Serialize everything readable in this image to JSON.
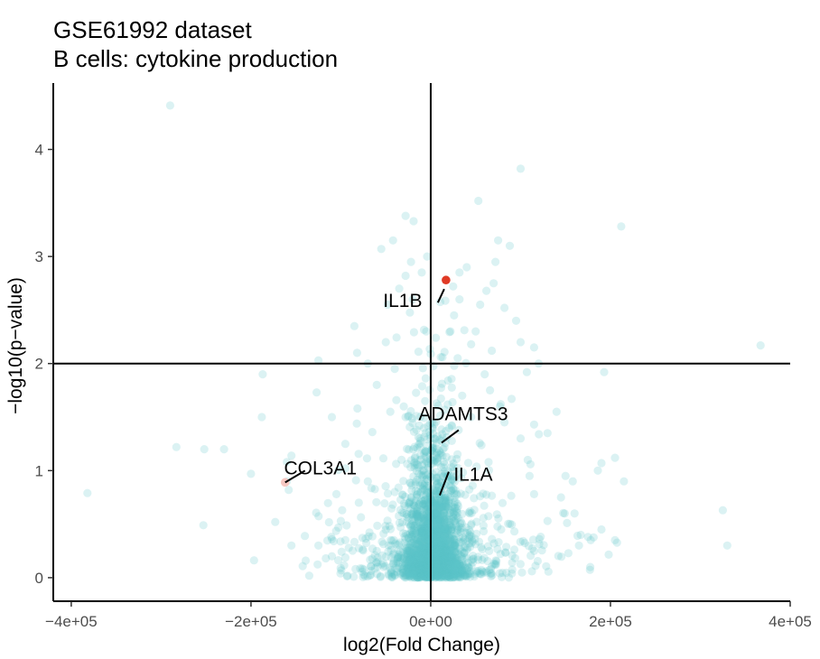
{
  "chart_data": {
    "type": "scatter",
    "title": "GSE61992 dataset",
    "subtitle": "B cells: cytokine production",
    "xlabel": "log2(Fold Change)",
    "ylabel": "−log10(p−value)",
    "xlim": [
      -420000,
      400000
    ],
    "ylim": [
      -0.22,
      4.62
    ],
    "x_ticks": [
      -400000,
      -200000,
      0,
      200000,
      400000
    ],
    "x_tick_labels": [
      "−4e+05",
      "−2e+05",
      "0e+00",
      "2e+05",
      "4e+05"
    ],
    "y_ticks": [
      0,
      1,
      2,
      3,
      4
    ],
    "y_tick_labels": [
      "0",
      "1",
      "2",
      "3",
      "4"
    ],
    "reference_lines": {
      "vertical_x": 0,
      "horizontal_y": 2
    },
    "grid": false,
    "colors": {
      "points": "#5bc2c7",
      "highlight": "#e03a25",
      "faint": "#f7c8c2",
      "line": "#000000"
    },
    "point_alpha": 0.22,
    "highlighted": [
      {
        "gene": "IL1B",
        "x": 17000,
        "y": 2.78,
        "color": "#e03a25"
      },
      {
        "gene": "COL3A1",
        "x": -162000,
        "y": 0.89,
        "color": "#f7c8c2"
      }
    ],
    "labels": [
      {
        "text": "IL1B",
        "x": 17000,
        "y": 2.78
      },
      {
        "text": "COL3A1",
        "x": -162000,
        "y": 0.89
      },
      {
        "text": "ADAMTS3",
        "x": 6000,
        "y": 1.26
      },
      {
        "text": "IL1A",
        "x": 5000,
        "y": 0.77
      }
    ],
    "points": [
      [
        -290000,
        4.41
      ],
      [
        -382000,
        0.79
      ],
      [
        -253000,
        0.49
      ],
      [
        -283000,
        1.22
      ],
      [
        -252000,
        1.2
      ],
      [
        -230000,
        1.2
      ],
      [
        -200000,
        0.97
      ],
      [
        -188000,
        1.5
      ],
      [
        -187000,
        1.9
      ],
      [
        -155000,
        1.14
      ],
      [
        -160000,
        1.08
      ],
      [
        -173000,
        0.52
      ],
      [
        -155000,
        0.3
      ],
      [
        -140000,
        0.39
      ],
      [
        -125000,
        0.3
      ],
      [
        -110000,
        0.36
      ],
      [
        -160000,
        0.9
      ],
      [
        -158000,
        0.82
      ],
      [
        -127000,
        1.73
      ],
      [
        -125000,
        2.03
      ],
      [
        -110000,
        1.5
      ],
      [
        -95000,
        1.25
      ],
      [
        -82000,
        2.1
      ],
      [
        -70000,
        2.0
      ],
      [
        -50000,
        2.2
      ],
      [
        -65000,
        1.36
      ],
      [
        -60000,
        1.8
      ],
      [
        -45000,
        1.55
      ],
      [
        -30000,
        1.6
      ],
      [
        -40000,
        1.95
      ],
      [
        -48000,
        2.55
      ],
      [
        -35000,
        2.7
      ],
      [
        -22000,
        2.95
      ],
      [
        -28000,
        2.82
      ],
      [
        -20000,
        2.6
      ],
      [
        -55000,
        3.07
      ],
      [
        -42000,
        3.15
      ],
      [
        -28000,
        3.38
      ],
      [
        -19000,
        3.33
      ],
      [
        -85000,
        2.35
      ],
      [
        -95000,
        1.02
      ],
      [
        -80000,
        0.7
      ],
      [
        -105000,
        0.78
      ],
      [
        -100000,
        0.53
      ],
      [
        -110000,
        0.2
      ],
      [
        -95000,
        0.35
      ],
      [
        -70000,
        0.9
      ],
      [
        -60000,
        0.25
      ],
      [
        -40000,
        0.8
      ],
      [
        -35000,
        0.1
      ],
      [
        -12000,
        1.1
      ],
      [
        -5000,
        2.3
      ],
      [
        -10000,
        2.85
      ],
      [
        -4000,
        3.0
      ],
      [
        32000,
        2.85
      ],
      [
        40000,
        2.9
      ],
      [
        53000,
        3.52
      ],
      [
        75000,
        3.15
      ],
      [
        72000,
        2.95
      ],
      [
        70000,
        2.75
      ],
      [
        62000,
        2.68
      ],
      [
        55000,
        2.55
      ],
      [
        50000,
        2.3
      ],
      [
        45000,
        2.18
      ],
      [
        100000,
        3.82
      ],
      [
        88000,
        3.1
      ],
      [
        82000,
        2.52
      ],
      [
        95000,
        2.4
      ],
      [
        100000,
        2.2
      ],
      [
        115000,
        2.15
      ],
      [
        120000,
        2.0
      ],
      [
        107000,
        1.92
      ],
      [
        90000,
        1.67
      ],
      [
        115000,
        1.43
      ],
      [
        130000,
        1.35
      ],
      [
        140000,
        1.55
      ],
      [
        108000,
        1.1
      ],
      [
        110000,
        0.95
      ],
      [
        115000,
        0.78
      ],
      [
        130000,
        0.53
      ],
      [
        150000,
        0.95
      ],
      [
        158000,
        0.9
      ],
      [
        145000,
        0.75
      ],
      [
        160000,
        0.6
      ],
      [
        167000,
        0.4
      ],
      [
        175000,
        0.38
      ],
      [
        178000,
        0.35
      ],
      [
        165000,
        0.3
      ],
      [
        190000,
        0.45
      ],
      [
        205000,
        0.35
      ],
      [
        193000,
        1.92
      ],
      [
        212000,
        3.28
      ],
      [
        215000,
        0.9
      ],
      [
        190000,
        1.07
      ],
      [
        186000,
        1.0
      ],
      [
        205000,
        1.12
      ],
      [
        325000,
        0.63
      ],
      [
        330000,
        0.3
      ],
      [
        367000,
        2.17
      ],
      [
        100000,
        1.3
      ],
      [
        82000,
        1.45
      ],
      [
        77000,
        1.6
      ],
      [
        66000,
        1.75
      ],
      [
        68000,
        2.12
      ],
      [
        60000,
        1.9
      ],
      [
        45000,
        1.5
      ],
      [
        35000,
        1.7
      ],
      [
        30000,
        2.05
      ],
      [
        22000,
        2.3
      ],
      [
        26000,
        2.45
      ],
      [
        32000,
        2.6
      ],
      [
        25000,
        2.72
      ]
    ],
    "cloud": {
      "n": 2400,
      "x_sd": 16000,
      "x_sd_tail": 60000,
      "y_scale": 0.4
    }
  }
}
